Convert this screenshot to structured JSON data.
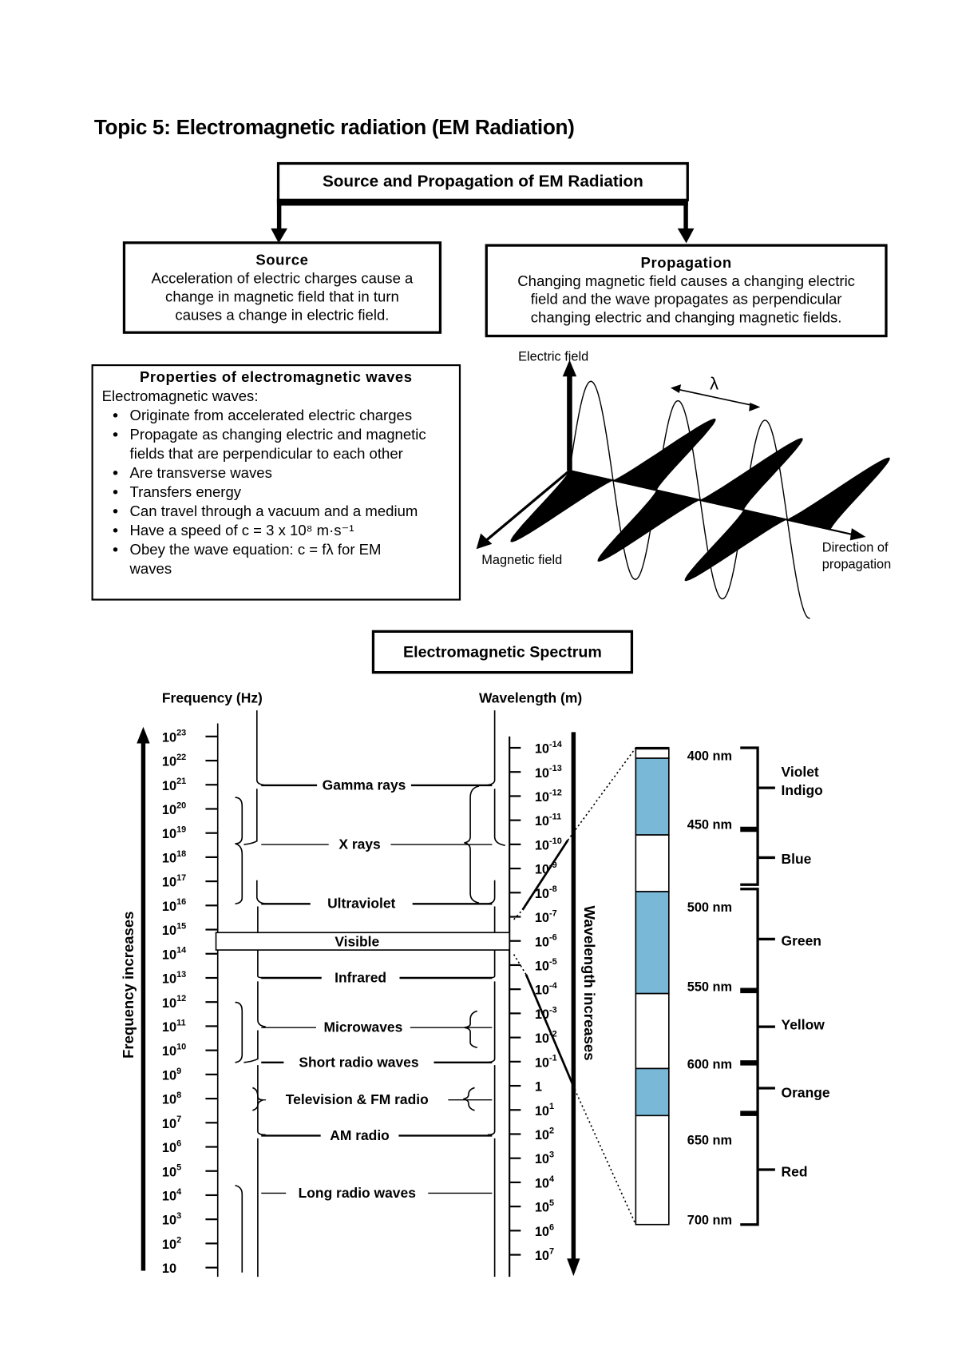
{
  "title": "Topic 5: Electromagnetic radiation (EM Radiation)",
  "flow": {
    "root": "Source and Propagation of EM Radiation",
    "source": {
      "heading": "Source",
      "lines": [
        "Acceleration of electric charges cause a",
        "change in magnetic field that in turn",
        "causes a change in electric field."
      ]
    },
    "propagation": {
      "heading": "Propagation",
      "lines": [
        "Changing magnetic field causes a changing electric",
        "field and the wave propagates as perpendicular",
        "changing electric and changing magnetic fields."
      ]
    }
  },
  "properties": {
    "heading": "Properties of electromagnetic waves",
    "intro": "Electromagnetic waves:",
    "items": [
      "Originate from accelerated electric charges",
      "Propagate as changing electric and magnetic fields that are perpendicular to each other",
      "Are transverse waves",
      "Transfers energy",
      "Can travel through a vacuum and a medium",
      "Have a speed of c = 3 x 10⁸ m·s⁻¹",
      "Obey the wave equation: c = fλ for EM waves"
    ]
  },
  "wave_diagram": {
    "electric_label": "Electric field",
    "magnetic_label": "Magnetic field",
    "direction_label_1": "Direction of",
    "direction_label_2": "propagation",
    "lambda": "λ"
  },
  "spectrum": {
    "title": "Electromagnetic Spectrum",
    "frequency_label": "Frequency (Hz)",
    "wavelength_label": "Wavelength (m)",
    "frequency_arrow_label": "Frequency increases",
    "wavelength_arrow_label": "Wavelength increases",
    "frequency_ticks": [
      {
        "base": "10",
        "exp": "23"
      },
      {
        "base": "10",
        "exp": "22"
      },
      {
        "base": "10",
        "exp": "21"
      },
      {
        "base": "10",
        "exp": "20"
      },
      {
        "base": "10",
        "exp": "19"
      },
      {
        "base": "10",
        "exp": "18"
      },
      {
        "base": "10",
        "exp": "17"
      },
      {
        "base": "10",
        "exp": "16"
      },
      {
        "base": "10",
        "exp": "15"
      },
      {
        "base": "10",
        "exp": "14"
      },
      {
        "base": "10",
        "exp": "13"
      },
      {
        "base": "10",
        "exp": "12"
      },
      {
        "base": "10",
        "exp": "11"
      },
      {
        "base": "10",
        "exp": "10"
      },
      {
        "base": "10",
        "exp": "9"
      },
      {
        "base": "10",
        "exp": "8"
      },
      {
        "base": "10",
        "exp": "7"
      },
      {
        "base": "10",
        "exp": "6"
      },
      {
        "base": "10",
        "exp": "5"
      },
      {
        "base": "10",
        "exp": "4"
      },
      {
        "base": "10",
        "exp": "3"
      },
      {
        "base": "10",
        "exp": "2"
      },
      {
        "base": "10",
        "exp": ""
      }
    ],
    "wavelength_ticks": [
      {
        "base": "10",
        "exp": "-14"
      },
      {
        "base": "10",
        "exp": "-13"
      },
      {
        "base": "10",
        "exp": "-12"
      },
      {
        "base": "10",
        "exp": "-11"
      },
      {
        "base": "10",
        "exp": "-10"
      },
      {
        "base": "10",
        "exp": "-9"
      },
      {
        "base": "10",
        "exp": "-8"
      },
      {
        "base": "10",
        "exp": "-7"
      },
      {
        "base": "10",
        "exp": "-6"
      },
      {
        "base": "10",
        "exp": "-5"
      },
      {
        "base": "10",
        "exp": "-4"
      },
      {
        "base": "10",
        "exp": "-3"
      },
      {
        "base": "10",
        "exp": "-2"
      },
      {
        "base": "10",
        "exp": "-1"
      },
      {
        "base": "1",
        "exp": ""
      },
      {
        "base": "10",
        "exp": "1"
      },
      {
        "base": "10",
        "exp": "2"
      },
      {
        "base": "10",
        "exp": "3"
      },
      {
        "base": "10",
        "exp": "4"
      },
      {
        "base": "10",
        "exp": "5"
      },
      {
        "base": "10",
        "exp": "6"
      },
      {
        "base": "10",
        "exp": "7"
      }
    ],
    "bands": [
      "Gamma rays",
      "X rays",
      "Ultraviolet",
      "Visible",
      "Infrared",
      "Microwaves",
      "Short radio waves",
      "Television & FM radio",
      "AM radio",
      "Long radio waves"
    ],
    "visible_nm_labels": [
      "400 nm",
      "450 nm",
      "500 nm",
      "550 nm",
      "600 nm",
      "650 nm",
      "700 nm"
    ],
    "colors": [
      {
        "lines": [
          "Violet",
          "Indigo"
        ]
      },
      {
        "lines": [
          "Blue"
        ]
      },
      {
        "lines": [
          "Green"
        ]
      },
      {
        "lines": [
          "Yellow"
        ]
      },
      {
        "lines": [
          "Orange"
        ]
      },
      {
        "lines": [
          "Red"
        ]
      }
    ],
    "bar_fill": "#7ab8d8"
  }
}
